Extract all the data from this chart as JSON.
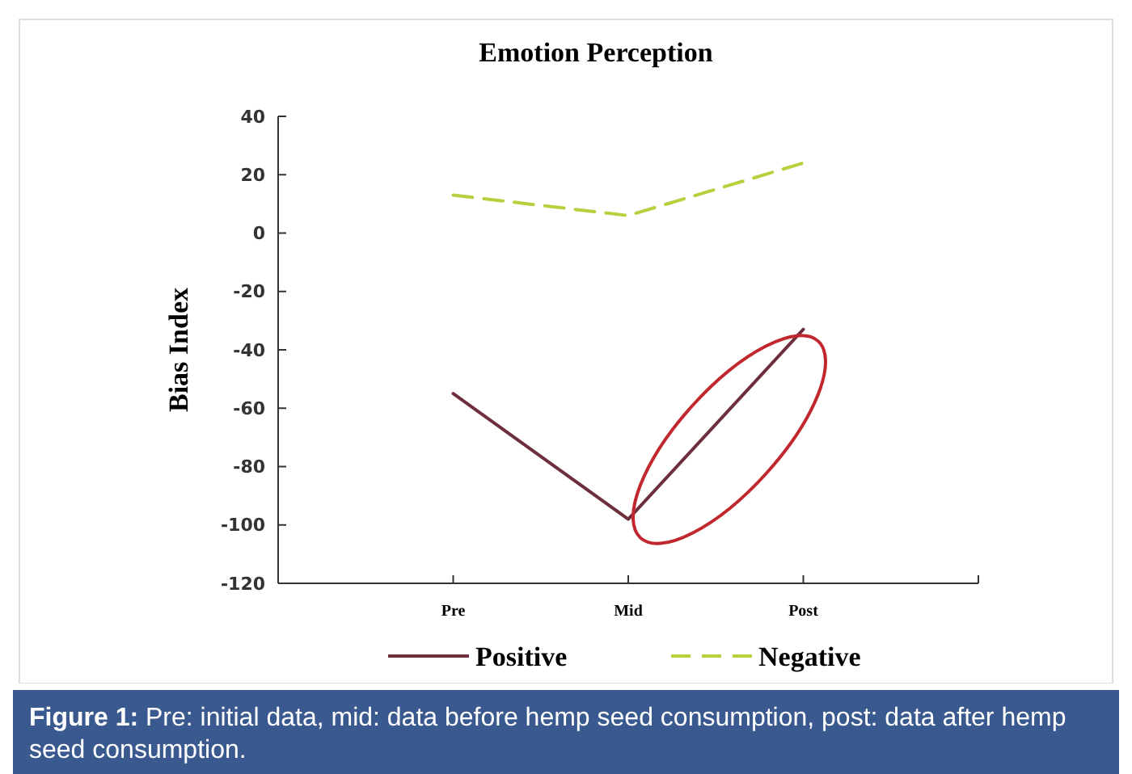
{
  "chart_data": {
    "type": "line",
    "title": "Emotion Perception",
    "ylabel": "Bias Index",
    "categories": [
      "Pre",
      "Mid",
      "Post"
    ],
    "series": [
      {
        "name": "Positive",
        "color": "#6e2f3c",
        "values": [
          -55,
          -98,
          -33
        ],
        "line_style": "solid"
      },
      {
        "name": "Negative",
        "color": "#b8cf3e",
        "values": [
          13,
          6,
          24
        ],
        "line_style": "dashed"
      }
    ],
    "ylim": [
      -120,
      40
    ],
    "yticks": [
      -120,
      -100,
      -80,
      -60,
      -40,
      -20,
      0,
      20,
      40
    ],
    "grid": false,
    "legend": "bottom",
    "marker": "none",
    "annotations": [
      "Figure 1: Pre: initial data, mid: data before hemp seed consumption, post: data after hemp seed consumption."
    ]
  }
}
